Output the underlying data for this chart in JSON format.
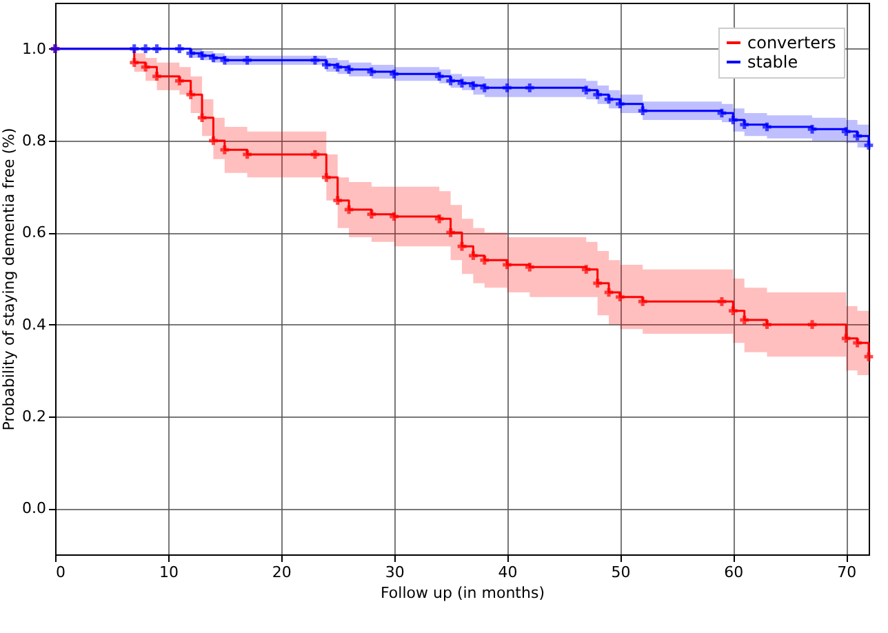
{
  "chart_data": {
    "type": "step",
    "xlabel": "Follow up (in months)",
    "ylabel": "Probability of staying dementia free (%)",
    "xlim": [
      0,
      72
    ],
    "ylim": [
      -0.1,
      1.1
    ],
    "xticks": [
      0,
      10,
      20,
      30,
      40,
      50,
      60,
      70
    ],
    "yticks": [
      {
        "value": 0,
        "label": "0.0"
      },
      {
        "value": 0.2,
        "label": "0.2"
      },
      {
        "value": 0.4,
        "label": "0.4"
      },
      {
        "value": 0.6,
        "label": "0.6"
      },
      {
        "value": 0.8,
        "label": "0.8"
      },
      {
        "value": 1,
        "label": "1.0"
      }
    ],
    "grid": true,
    "legend": "top right",
    "marker": "cross",
    "line_style": "solid",
    "x": [
      0,
      7,
      8,
      9,
      11,
      12,
      13,
      14,
      15,
      17,
      23,
      24,
      25,
      26,
      28,
      30,
      34,
      35,
      36,
      37,
      38,
      40,
      42,
      47,
      48,
      49,
      50,
      52,
      59,
      60,
      61,
      63,
      67,
      70,
      71,
      72
    ],
    "series": [
      {
        "name": "converters",
        "color": "#ff0000",
        "values": [
          1.0,
          0.97,
          0.96,
          0.94,
          0.93,
          0.9,
          0.85,
          0.8,
          0.78,
          0.77,
          0.77,
          0.72,
          0.67,
          0.65,
          0.64,
          0.635,
          0.63,
          0.6,
          0.57,
          0.55,
          0.54,
          0.53,
          0.525,
          0.52,
          0.49,
          0.47,
          0.46,
          0.45,
          0.45,
          0.43,
          0.41,
          0.4,
          0.4,
          0.37,
          0.36,
          0.33
        ],
        "lower": [
          1.0,
          0.95,
          0.93,
          0.91,
          0.9,
          0.86,
          0.81,
          0.76,
          0.73,
          0.72,
          0.72,
          0.67,
          0.61,
          0.59,
          0.58,
          0.57,
          0.57,
          0.54,
          0.51,
          0.49,
          0.48,
          0.47,
          0.46,
          0.46,
          0.42,
          0.4,
          0.39,
          0.38,
          0.38,
          0.36,
          0.34,
          0.33,
          0.33,
          0.3,
          0.29,
          0.27
        ],
        "upper": [
          1.0,
          0.99,
          0.98,
          0.97,
          0.96,
          0.94,
          0.89,
          0.85,
          0.83,
          0.82,
          0.82,
          0.77,
          0.72,
          0.71,
          0.7,
          0.7,
          0.69,
          0.66,
          0.63,
          0.61,
          0.6,
          0.59,
          0.59,
          0.58,
          0.56,
          0.54,
          0.53,
          0.52,
          0.52,
          0.5,
          0.48,
          0.47,
          0.47,
          0.44,
          0.43,
          0.41
        ]
      },
      {
        "name": "stable",
        "color": "#0000ff",
        "values": [
          1.0,
          1.0,
          1.0,
          1.0,
          1.0,
          0.99,
          0.985,
          0.98,
          0.975,
          0.975,
          0.975,
          0.965,
          0.96,
          0.955,
          0.95,
          0.945,
          0.94,
          0.93,
          0.925,
          0.92,
          0.915,
          0.915,
          0.915,
          0.91,
          0.9,
          0.89,
          0.88,
          0.865,
          0.86,
          0.845,
          0.835,
          0.83,
          0.825,
          0.82,
          0.81,
          0.79
        ],
        "lower": [
          1.0,
          1.0,
          1.0,
          1.0,
          1.0,
          0.98,
          0.975,
          0.97,
          0.965,
          0.965,
          0.965,
          0.95,
          0.945,
          0.94,
          0.935,
          0.93,
          0.925,
          0.915,
          0.91,
          0.9,
          0.895,
          0.895,
          0.895,
          0.89,
          0.88,
          0.87,
          0.86,
          0.845,
          0.84,
          0.82,
          0.81,
          0.805,
          0.8,
          0.795,
          0.785,
          0.76
        ],
        "upper": [
          1.0,
          1.0,
          1.0,
          1.0,
          1.0,
          1.0,
          0.995,
          0.99,
          0.985,
          0.985,
          0.985,
          0.98,
          0.975,
          0.97,
          0.965,
          0.96,
          0.955,
          0.945,
          0.94,
          0.94,
          0.935,
          0.935,
          0.935,
          0.93,
          0.92,
          0.91,
          0.9,
          0.885,
          0.88,
          0.87,
          0.86,
          0.855,
          0.85,
          0.845,
          0.835,
          0.82
        ]
      }
    ]
  }
}
